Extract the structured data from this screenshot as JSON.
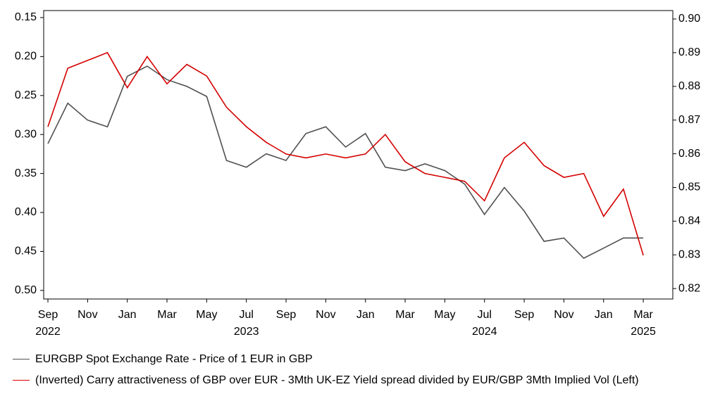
{
  "chart_data": {
    "type": "line",
    "x": [
      "2022-09",
      "2022-10",
      "2022-11",
      "2022-12",
      "2023-01",
      "2023-02",
      "2023-03",
      "2023-04",
      "2023-05",
      "2023-06",
      "2023-07",
      "2023-08",
      "2023-09",
      "2023-10",
      "2023-11",
      "2023-12",
      "2024-01",
      "2024-02",
      "2024-03",
      "2024-04",
      "2024-05",
      "2024-06",
      "2024-07",
      "2024-08",
      "2024-09",
      "2024-10",
      "2024-11",
      "2024-12",
      "2025-01",
      "2025-02",
      "2025-03"
    ],
    "series": [
      {
        "name": "EURGBP Spot Exchange Rate - Price of 1 EUR in GBP",
        "color": "#505050",
        "axis": "y2",
        "values": [
          0.863,
          0.875,
          0.87,
          0.868,
          0.883,
          0.886,
          0.882,
          0.88,
          0.877,
          0.858,
          0.856,
          0.86,
          0.858,
          0.866,
          0.868,
          0.862,
          0.866,
          0.856,
          0.855,
          0.857,
          0.855,
          0.851,
          0.842,
          0.85,
          0.843,
          0.834,
          0.835,
          0.829,
          0.832,
          0.835,
          0.835
        ]
      },
      {
        "name": "(Inverted) Carry attractiveness of GBP over EUR - 3Mth UK-EZ Yield spread divided by EUR/GBP 3Mth Implied Vol   (Left)",
        "color": "#d40000",
        "axis": "y",
        "values": [
          0.29,
          0.215,
          0.205,
          0.195,
          0.24,
          0.2,
          0.235,
          0.21,
          0.225,
          0.265,
          0.29,
          0.31,
          0.325,
          0.33,
          0.325,
          0.33,
          0.325,
          0.3,
          0.335,
          0.35,
          0.355,
          0.36,
          0.385,
          0.33,
          0.31,
          0.34,
          0.355,
          0.35,
          0.405,
          0.37,
          0.455
        ]
      }
    ],
    "ylim": [
      0.141,
      0.511
    ],
    "y_inverted": true,
    "yticks": [
      0.15,
      {
        "value": 0.2,
        "label": "0.20"
      },
      0.25,
      {
        "value": 0.3,
        "label": "0.30"
      },
      0.35,
      {
        "value": 0.4,
        "label": "0.40"
      },
      0.45,
      {
        "value": 0.5,
        "label": "0.50"
      }
    ],
    "y2lim": [
      0.8169,
      0.9025
    ],
    "y2ticks": [
      0.82,
      0.83,
      0.84,
      0.85,
      0.86,
      0.87,
      0.88,
      0.89,
      {
        "value": 0.9,
        "label": "0.90"
      }
    ],
    "xticks": [
      {
        "value": "2022-09",
        "label": "Sep"
      },
      {
        "value": "2022-11",
        "label": "Nov"
      },
      {
        "value": "2023-01",
        "label": "Jan"
      },
      {
        "value": "2023-03",
        "label": "Mar"
      },
      {
        "value": "2023-05",
        "label": "May"
      },
      {
        "value": "2023-07",
        "label": "Jul"
      },
      {
        "value": "2023-09",
        "label": "Sep"
      },
      {
        "value": "2023-11",
        "label": "Nov"
      },
      {
        "value": "2024-01",
        "label": "Jan"
      },
      {
        "value": "2024-03",
        "label": "Mar"
      },
      {
        "value": "2024-05",
        "label": "May"
      },
      {
        "value": "2024-07",
        "label": "Jul"
      },
      {
        "value": "2024-09",
        "label": "Sep"
      },
      {
        "value": "2024-11",
        "label": "Nov"
      },
      {
        "value": "2025-01",
        "label": "Jan"
      },
      {
        "value": "2025-03",
        "label": "Mar"
      }
    ],
    "x_year_labels": [
      {
        "value": "2022-09",
        "label": "2022"
      },
      {
        "value": "2023-07",
        "label": "2023"
      },
      {
        "value": "2024-07",
        "label": "2024"
      },
      {
        "value": "2025-03",
        "label": "2025"
      }
    ],
    "legend": "bottom-left"
  }
}
